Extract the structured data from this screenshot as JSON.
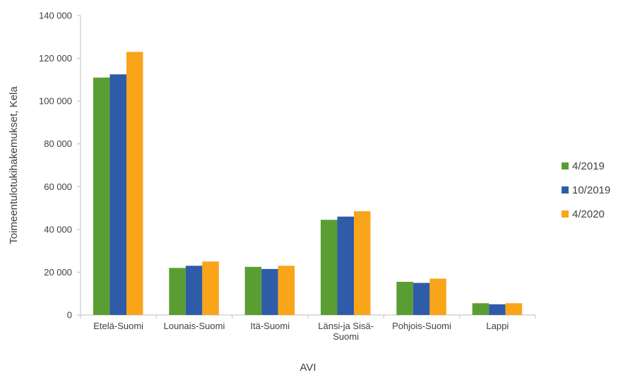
{
  "chart_data": {
    "type": "bar",
    "title": "",
    "xlabel": "AVI",
    "ylabel": "Toimeentulotukihakemukset, Kela",
    "ylim": [
      0,
      140000
    ],
    "y_ticks": [
      0,
      20000,
      40000,
      60000,
      80000,
      100000,
      120000,
      140000
    ],
    "y_tick_labels": [
      "0",
      "20 000",
      "40 000",
      "60 000",
      "80 000",
      "100 000",
      "120 000",
      "140 000"
    ],
    "grid": false,
    "legend_position": "right",
    "categories": [
      [
        "Etelä-Suomi"
      ],
      [
        "Lounais-Suomi"
      ],
      [
        "Itä-Suomi"
      ],
      [
        "Länsi-ja Sisä-",
        "Suomi"
      ],
      [
        "Pohjois-Suomi"
      ],
      [
        "Lappi"
      ]
    ],
    "series": [
      {
        "name": "4/2019",
        "color": "#5a9e33",
        "values": [
          111000,
          22000,
          22500,
          44500,
          15500,
          5500
        ]
      },
      {
        "name": "10/2019",
        "color": "#2e5ca8",
        "values": [
          112500,
          23000,
          21500,
          46000,
          15000,
          5000
        ]
      },
      {
        "name": "4/2020",
        "color": "#f8a519",
        "values": [
          123000,
          25000,
          23000,
          48500,
          17000,
          5500
        ]
      }
    ]
  }
}
